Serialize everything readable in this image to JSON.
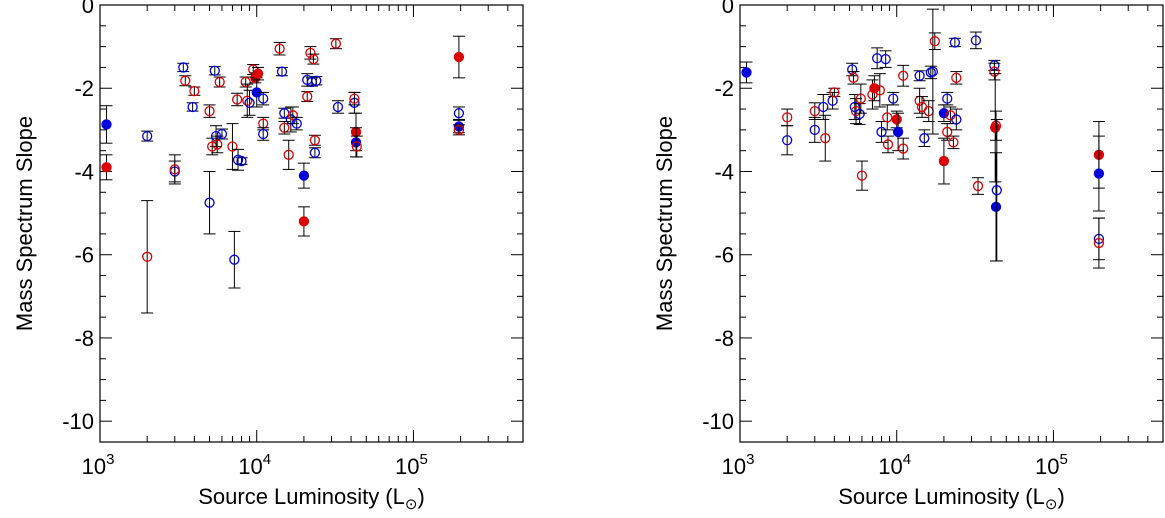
{
  "chart_data": [
    {
      "type": "scatter",
      "xscale": "log",
      "xlim": [
        1000,
        500000
      ],
      "ylim": [
        -10.5,
        0
      ],
      "xlabel": "Source Luminosity (L",
      "xlabel_symbol": "⊙",
      "xlabel_close": ")",
      "ylabel": "Mass Spectrum Slope",
      "x_ticks": [
        {
          "value": 1000,
          "base": "10",
          "exp": "3"
        },
        {
          "value": 10000,
          "base": "10",
          "exp": "4"
        },
        {
          "value": 100000,
          "base": "10",
          "exp": "5"
        }
      ],
      "y_ticks": [
        {
          "value": 0,
          "label": "0"
        },
        {
          "value": -2,
          "label": "-2"
        },
        {
          "value": -4,
          "label": "-4"
        },
        {
          "value": -6,
          "label": "-6"
        },
        {
          "value": -8,
          "label": "-8"
        },
        {
          "value": -10,
          "label": "-10"
        }
      ],
      "colors": {
        "blue": "#0000dd",
        "red": "#dd0000"
      },
      "points": [
        {
          "x": 1100,
          "y": -2.87,
          "err": 0.45,
          "color": "blue",
          "filled": true
        },
        {
          "x": 1100,
          "y": -3.9,
          "err": 0.3,
          "color": "red",
          "filled": true
        },
        {
          "x": 2000,
          "y": -3.15,
          "err": 0.12,
          "color": "blue",
          "filled": false
        },
        {
          "x": 2000,
          "y": -6.05,
          "err": 1.35,
          "color": "red",
          "filled": false
        },
        {
          "x": 3000,
          "y": -4.0,
          "err": 0.25,
          "color": "blue",
          "filled": false
        },
        {
          "x": 3000,
          "y": -3.95,
          "err": 0.35,
          "color": "red",
          "filled": false
        },
        {
          "x": 3400,
          "y": -1.5,
          "err": 0.1,
          "color": "blue",
          "filled": false
        },
        {
          "x": 3500,
          "y": -1.82,
          "err": 0.12,
          "color": "red",
          "filled": false
        },
        {
          "x": 3900,
          "y": -2.45,
          "err": 0.1,
          "color": "blue",
          "filled": false
        },
        {
          "x": 4000,
          "y": -2.07,
          "err": 0.1,
          "color": "red",
          "filled": false
        },
        {
          "x": 5000,
          "y": -4.75,
          "err": 0.75,
          "color": "blue",
          "filled": false
        },
        {
          "x": 5000,
          "y": -2.55,
          "err": 0.15,
          "color": "red",
          "filled": false
        },
        {
          "x": 5200,
          "y": -3.4,
          "err": 0.2,
          "color": "red",
          "filled": false
        },
        {
          "x": 5400,
          "y": -1.58,
          "err": 0.1,
          "color": "blue",
          "filled": false
        },
        {
          "x": 5500,
          "y": -3.15,
          "err": 0.25,
          "color": "blue",
          "filled": false
        },
        {
          "x": 5600,
          "y": -3.35,
          "err": 0.2,
          "color": "red",
          "filled": false
        },
        {
          "x": 5800,
          "y": -1.85,
          "err": 0.12,
          "color": "red",
          "filled": false
        },
        {
          "x": 6000,
          "y": -3.1,
          "err": 0.12,
          "color": "blue",
          "filled": false
        },
        {
          "x": 7000,
          "y": -3.4,
          "err": 0.55,
          "color": "red",
          "filled": false
        },
        {
          "x": 7200,
          "y": -6.12,
          "err": 0.68,
          "color": "blue",
          "filled": false
        },
        {
          "x": 7500,
          "y": -2.27,
          "err": 0.15,
          "color": "red",
          "filled": false
        },
        {
          "x": 7600,
          "y": -3.72,
          "err": 0.25,
          "color": "blue",
          "filled": false
        },
        {
          "x": 8000,
          "y": -3.75,
          "err": 0.08,
          "color": "blue",
          "filled": false
        },
        {
          "x": 8500,
          "y": -1.85,
          "err": 0.12,
          "color": "red",
          "filled": false
        },
        {
          "x": 8700,
          "y": -2.3,
          "err": 0.4,
          "color": "red",
          "filled": false
        },
        {
          "x": 9000,
          "y": -2.35,
          "err": 0.3,
          "color": "blue",
          "filled": false
        },
        {
          "x": 9500,
          "y": -1.55,
          "err": 0.12,
          "color": "red",
          "filled": false
        },
        {
          "x": 9800,
          "y": -1.75,
          "err": 0.12,
          "color": "red",
          "filled": true
        },
        {
          "x": 10000,
          "y": -2.1,
          "err": 0.35,
          "color": "blue",
          "filled": true
        },
        {
          "x": 10200,
          "y": -1.65,
          "err": 0.15,
          "color": "red",
          "filled": true
        },
        {
          "x": 11000,
          "y": -2.25,
          "err": 0.15,
          "color": "blue",
          "filled": false
        },
        {
          "x": 11000,
          "y": -2.85,
          "err": 0.15,
          "color": "red",
          "filled": false
        },
        {
          "x": 11000,
          "y": -3.1,
          "err": 0.15,
          "color": "blue",
          "filled": false
        },
        {
          "x": 14000,
          "y": -1.05,
          "err": 0.15,
          "color": "red",
          "filled": false
        },
        {
          "x": 14500,
          "y": -1.6,
          "err": 0.1,
          "color": "blue",
          "filled": false
        },
        {
          "x": 15000,
          "y": -2.6,
          "err": 0.12,
          "color": "blue",
          "filled": false
        },
        {
          "x": 15000,
          "y": -2.95,
          "err": 0.15,
          "color": "red",
          "filled": false
        },
        {
          "x": 16000,
          "y": -3.6,
          "err": 0.35,
          "color": "red",
          "filled": false
        },
        {
          "x": 16500,
          "y": -2.75,
          "err": 0.3,
          "color": "blue",
          "filled": false
        },
        {
          "x": 17000,
          "y": -2.65,
          "err": 0.2,
          "color": "red",
          "filled": false
        },
        {
          "x": 18000,
          "y": -2.85,
          "err": 0.15,
          "color": "blue",
          "filled": false
        },
        {
          "x": 20000,
          "y": -4.1,
          "err": 0.3,
          "color": "blue",
          "filled": true
        },
        {
          "x": 20000,
          "y": -5.2,
          "err": 0.35,
          "color": "red",
          "filled": true
        },
        {
          "x": 21000,
          "y": -1.8,
          "err": 0.15,
          "color": "blue",
          "filled": false
        },
        {
          "x": 21000,
          "y": -2.2,
          "err": 0.12,
          "color": "red",
          "filled": false
        },
        {
          "x": 22000,
          "y": -1.15,
          "err": 0.15,
          "color": "red",
          "filled": false
        },
        {
          "x": 22500,
          "y": -1.85,
          "err": 0.1,
          "color": "blue",
          "filled": false
        },
        {
          "x": 23000,
          "y": -1.3,
          "err": 0.12,
          "color": "red",
          "filled": false
        },
        {
          "x": 23500,
          "y": -3.25,
          "err": 0.12,
          "color": "red",
          "filled": false
        },
        {
          "x": 23500,
          "y": -3.55,
          "err": 0.12,
          "color": "blue",
          "filled": false
        },
        {
          "x": 24000,
          "y": -1.82,
          "err": 0.1,
          "color": "blue",
          "filled": false
        },
        {
          "x": 32000,
          "y": -0.93,
          "err": 0.12,
          "color": "red",
          "filled": false
        },
        {
          "x": 33000,
          "y": -2.45,
          "err": 0.15,
          "color": "blue",
          "filled": false
        },
        {
          "x": 42000,
          "y": -2.35,
          "err": 0.25,
          "color": "blue",
          "filled": false
        },
        {
          "x": 42000,
          "y": -2.25,
          "err": 0.15,
          "color": "red",
          "filled": false
        },
        {
          "x": 43000,
          "y": -3.05,
          "err": 0.45,
          "color": "red",
          "filled": true
        },
        {
          "x": 43000,
          "y": -3.3,
          "err": 0.35,
          "color": "blue",
          "filled": true
        },
        {
          "x": 43500,
          "y": -3.4,
          "err": 0.25,
          "color": "red",
          "filled": false
        },
        {
          "x": 195000,
          "y": -1.25,
          "err": 0.5,
          "color": "red",
          "filled": true
        },
        {
          "x": 195000,
          "y": -2.6,
          "err": 0.15,
          "color": "blue",
          "filled": false
        },
        {
          "x": 195000,
          "y": -2.92,
          "err": 0.15,
          "color": "blue",
          "filled": true
        },
        {
          "x": 195000,
          "y": -3.0,
          "err": 0.12,
          "color": "red",
          "filled": false
        }
      ]
    },
    {
      "type": "scatter",
      "xscale": "log",
      "xlim": [
        1000,
        500000
      ],
      "ylim": [
        -10.5,
        0
      ],
      "xlabel": "Source Luminosity (L",
      "xlabel_symbol": "⊙",
      "xlabel_close": ")",
      "ylabel": "Mass Spectrum Slope",
      "x_ticks": [
        {
          "value": 1000,
          "base": "10",
          "exp": "3"
        },
        {
          "value": 10000,
          "base": "10",
          "exp": "4"
        },
        {
          "value": 100000,
          "base": "10",
          "exp": "5"
        }
      ],
      "y_ticks": [
        {
          "value": 0,
          "label": "0"
        },
        {
          "value": -2,
          "label": "-2"
        },
        {
          "value": -4,
          "label": "-4"
        },
        {
          "value": -6,
          "label": "-6"
        },
        {
          "value": -8,
          "label": "-8"
        },
        {
          "value": -10,
          "label": "-10"
        }
      ],
      "colors": {
        "blue": "#0000dd",
        "red": "#dd0000"
      },
      "points": [
        {
          "x": 1100,
          "y": -1.62,
          "err": 0.25,
          "color": "blue",
          "filled": true
        },
        {
          "x": 2000,
          "y": -2.7,
          "err": 0.2,
          "color": "red",
          "filled": false
        },
        {
          "x": 2000,
          "y": -3.25,
          "err": 0.35,
          "color": "blue",
          "filled": false
        },
        {
          "x": 3000,
          "y": -2.55,
          "err": 0.2,
          "color": "red",
          "filled": false
        },
        {
          "x": 3000,
          "y": -3.0,
          "err": 0.3,
          "color": "blue",
          "filled": false
        },
        {
          "x": 3400,
          "y": -2.45,
          "err": 0.3,
          "color": "blue",
          "filled": false
        },
        {
          "x": 3500,
          "y": -3.2,
          "err": 0.55,
          "color": "red",
          "filled": false
        },
        {
          "x": 3900,
          "y": -2.3,
          "err": 0.2,
          "color": "blue",
          "filled": false
        },
        {
          "x": 4000,
          "y": -2.1,
          "err": 0.1,
          "color": "red",
          "filled": false
        },
        {
          "x": 5200,
          "y": -1.55,
          "err": 0.15,
          "color": "blue",
          "filled": false
        },
        {
          "x": 5300,
          "y": -1.75,
          "err": 0.15,
          "color": "red",
          "filled": false
        },
        {
          "x": 5400,
          "y": -2.45,
          "err": 0.3,
          "color": "blue",
          "filled": false
        },
        {
          "x": 5500,
          "y": -2.55,
          "err": 0.3,
          "color": "red",
          "filled": false
        },
        {
          "x": 5800,
          "y": -2.62,
          "err": 0.25,
          "color": "blue",
          "filled": false
        },
        {
          "x": 5900,
          "y": -2.25,
          "err": 0.35,
          "color": "red",
          "filled": false
        },
        {
          "x": 6000,
          "y": -4.1,
          "err": 0.35,
          "color": "red",
          "filled": false
        },
        {
          "x": 7000,
          "y": -2.15,
          "err": 0.35,
          "color": "red",
          "filled": false
        },
        {
          "x": 7200,
          "y": -2.0,
          "err": 0.3,
          "color": "red",
          "filled": true
        },
        {
          "x": 7500,
          "y": -1.28,
          "err": 0.25,
          "color": "blue",
          "filled": false
        },
        {
          "x": 7800,
          "y": -2.05,
          "err": 0.4,
          "color": "red",
          "filled": false
        },
        {
          "x": 8000,
          "y": -3.05,
          "err": 0.25,
          "color": "blue",
          "filled": false
        },
        {
          "x": 8500,
          "y": -1.3,
          "err": 0.2,
          "color": "blue",
          "filled": false
        },
        {
          "x": 8700,
          "y": -2.7,
          "err": 0.3,
          "color": "red",
          "filled": false
        },
        {
          "x": 8800,
          "y": -3.35,
          "err": 0.2,
          "color": "red",
          "filled": false
        },
        {
          "x": 9500,
          "y": -2.25,
          "err": 0.15,
          "color": "blue",
          "filled": false
        },
        {
          "x": 10000,
          "y": -2.75,
          "err": 0.2,
          "color": "red",
          "filled": true
        },
        {
          "x": 10200,
          "y": -3.05,
          "err": 0.45,
          "color": "blue",
          "filled": true
        },
        {
          "x": 11000,
          "y": -1.7,
          "err": 0.25,
          "color": "red",
          "filled": false
        },
        {
          "x": 11000,
          "y": -3.45,
          "err": 0.25,
          "color": "red",
          "filled": false
        },
        {
          "x": 14000,
          "y": -2.3,
          "err": 0.3,
          "color": "red",
          "filled": false
        },
        {
          "x": 14000,
          "y": -1.7,
          "err": 0.12,
          "color": "blue",
          "filled": false
        },
        {
          "x": 14500,
          "y": -2.45,
          "err": 0.25,
          "color": "red",
          "filled": false
        },
        {
          "x": 15000,
          "y": -3.2,
          "err": 0.2,
          "color": "blue",
          "filled": false
        },
        {
          "x": 16000,
          "y": -2.55,
          "err": 0.25,
          "color": "red",
          "filled": false
        },
        {
          "x": 16500,
          "y": -1.62,
          "err": 0.15,
          "color": "blue",
          "filled": false
        },
        {
          "x": 17000,
          "y": -1.6,
          "err": 1.5,
          "color": "blue",
          "filled": false
        },
        {
          "x": 17500,
          "y": -0.87,
          "err": 0.2,
          "color": "red",
          "filled": false
        },
        {
          "x": 20000,
          "y": -2.6,
          "err": 0.2,
          "color": "blue",
          "filled": true
        },
        {
          "x": 20000,
          "y": -3.75,
          "err": 0.55,
          "color": "red",
          "filled": true
        },
        {
          "x": 21000,
          "y": -2.25,
          "err": 0.15,
          "color": "blue",
          "filled": false
        },
        {
          "x": 21000,
          "y": -3.05,
          "err": 0.2,
          "color": "red",
          "filled": false
        },
        {
          "x": 22000,
          "y": -2.65,
          "err": 0.2,
          "color": "red",
          "filled": false
        },
        {
          "x": 23000,
          "y": -3.3,
          "err": 0.15,
          "color": "red",
          "filled": false
        },
        {
          "x": 23500,
          "y": -0.9,
          "err": 0.1,
          "color": "blue",
          "filled": false
        },
        {
          "x": 24000,
          "y": -1.75,
          "err": 0.15,
          "color": "red",
          "filled": false
        },
        {
          "x": 24000,
          "y": -2.75,
          "err": 0.25,
          "color": "blue",
          "filled": false
        },
        {
          "x": 32000,
          "y": -0.85,
          "err": 0.2,
          "color": "blue",
          "filled": false
        },
        {
          "x": 33000,
          "y": -4.35,
          "err": 0.2,
          "color": "red",
          "filled": false
        },
        {
          "x": 42000,
          "y": -1.45,
          "err": 0.12,
          "color": "blue",
          "filled": false
        },
        {
          "x": 42000,
          "y": -1.6,
          "err": 0.2,
          "color": "red",
          "filled": false
        },
        {
          "x": 42500,
          "y": -2.95,
          "err": 1.3,
          "color": "red",
          "filled": true
        },
        {
          "x": 43000,
          "y": -2.9,
          "err": 0.35,
          "color": "red",
          "filled": false
        },
        {
          "x": 43000,
          "y": -4.85,
          "err": 1.3,
          "color": "blue",
          "filled": true
        },
        {
          "x": 43500,
          "y": -4.45,
          "err": 1.7,
          "color": "blue",
          "filled": false
        },
        {
          "x": 195000,
          "y": -3.6,
          "err": 0.8,
          "color": "red",
          "filled": true
        },
        {
          "x": 195000,
          "y": -4.05,
          "err": 0.9,
          "color": "blue",
          "filled": true
        },
        {
          "x": 195000,
          "y": -5.62,
          "err": 0.5,
          "color": "blue",
          "filled": false
        },
        {
          "x": 195000,
          "y": -5.72,
          "err": 0.6,
          "color": "red",
          "filled": false
        }
      ]
    }
  ]
}
